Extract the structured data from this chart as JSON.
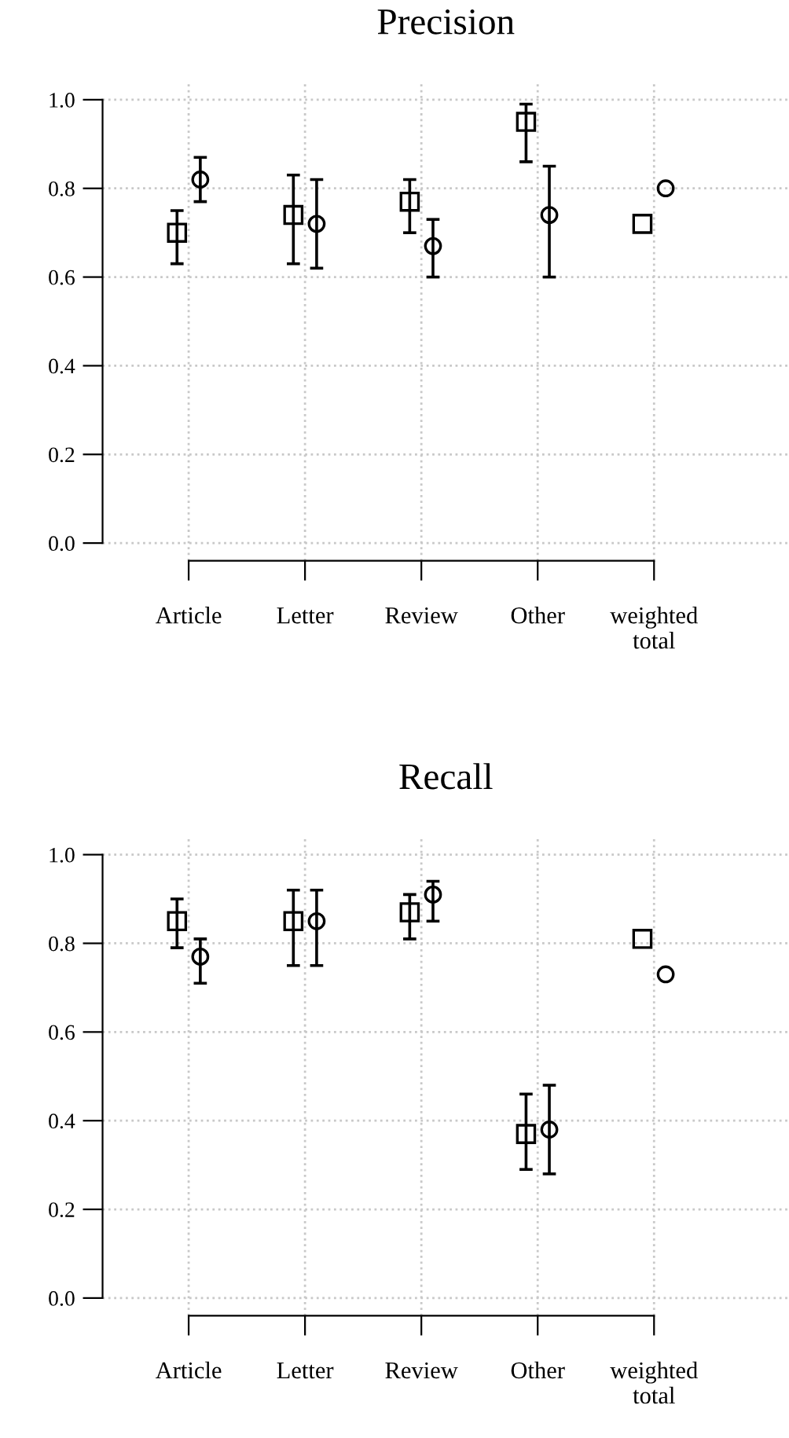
{
  "chart_data": [
    {
      "type": "scatter",
      "title": "Precision",
      "categories": [
        "Article",
        "Letter",
        "Review",
        "Other",
        "weighted\ntotal"
      ],
      "ylim": [
        -0.04,
        1.04
      ],
      "yticks": [
        {
          "value": 0,
          "label": "0.0"
        },
        {
          "value": 0.2,
          "label": "0.2"
        },
        {
          "value": 0.4,
          "label": "0.4"
        },
        {
          "value": 0.6,
          "label": "0.6"
        },
        {
          "value": 0.8,
          "label": "0.8"
        },
        {
          "value": 1,
          "label": "1.0"
        }
      ],
      "grid": true,
      "series": [
        {
          "color": "#000000",
          "marker": "square",
          "values": [
            0.7,
            0.74,
            0.77,
            0.95,
            0.72
          ],
          "errors": [
            [
              0.63,
              0.75
            ],
            [
              0.63,
              0.83
            ],
            [
              0.7,
              0.82
            ],
            [
              0.86,
              0.99
            ],
            null
          ]
        },
        {
          "color": "#000000",
          "marker": "circle",
          "values": [
            0.82,
            0.72,
            0.67,
            0.74,
            0.8
          ],
          "errors": [
            [
              0.77,
              0.87
            ],
            [
              0.62,
              0.82
            ],
            [
              0.6,
              0.73
            ],
            [
              0.6,
              0.85
            ],
            null
          ]
        }
      ]
    },
    {
      "type": "scatter",
      "title": "Recall",
      "categories": [
        "Article",
        "Letter",
        "Review",
        "Other",
        "weighted\ntotal"
      ],
      "ylim": [
        -0.04,
        1.04
      ],
      "yticks": [
        {
          "value": 0,
          "label": "0.0"
        },
        {
          "value": 0.2,
          "label": "0.2"
        },
        {
          "value": 0.4,
          "label": "0.4"
        },
        {
          "value": 0.6,
          "label": "0.6"
        },
        {
          "value": 0.8,
          "label": "0.8"
        },
        {
          "value": 1,
          "label": "1.0"
        }
      ],
      "grid": true,
      "series": [
        {
          "color": "#000000",
          "marker": "square",
          "values": [
            0.85,
            0.85,
            0.87,
            0.37,
            0.81
          ],
          "errors": [
            [
              0.79,
              0.9
            ],
            [
              0.75,
              0.92
            ],
            [
              0.81,
              0.91
            ],
            [
              0.29,
              0.46
            ],
            null
          ]
        },
        {
          "color": "#000000",
          "marker": "circle",
          "values": [
            0.77,
            0.85,
            0.91,
            0.38,
            0.73
          ],
          "errors": [
            [
              0.71,
              0.81
            ],
            [
              0.75,
              0.92
            ],
            [
              0.85,
              0.94
            ],
            [
              0.28,
              0.48
            ],
            null
          ]
        }
      ]
    }
  ]
}
